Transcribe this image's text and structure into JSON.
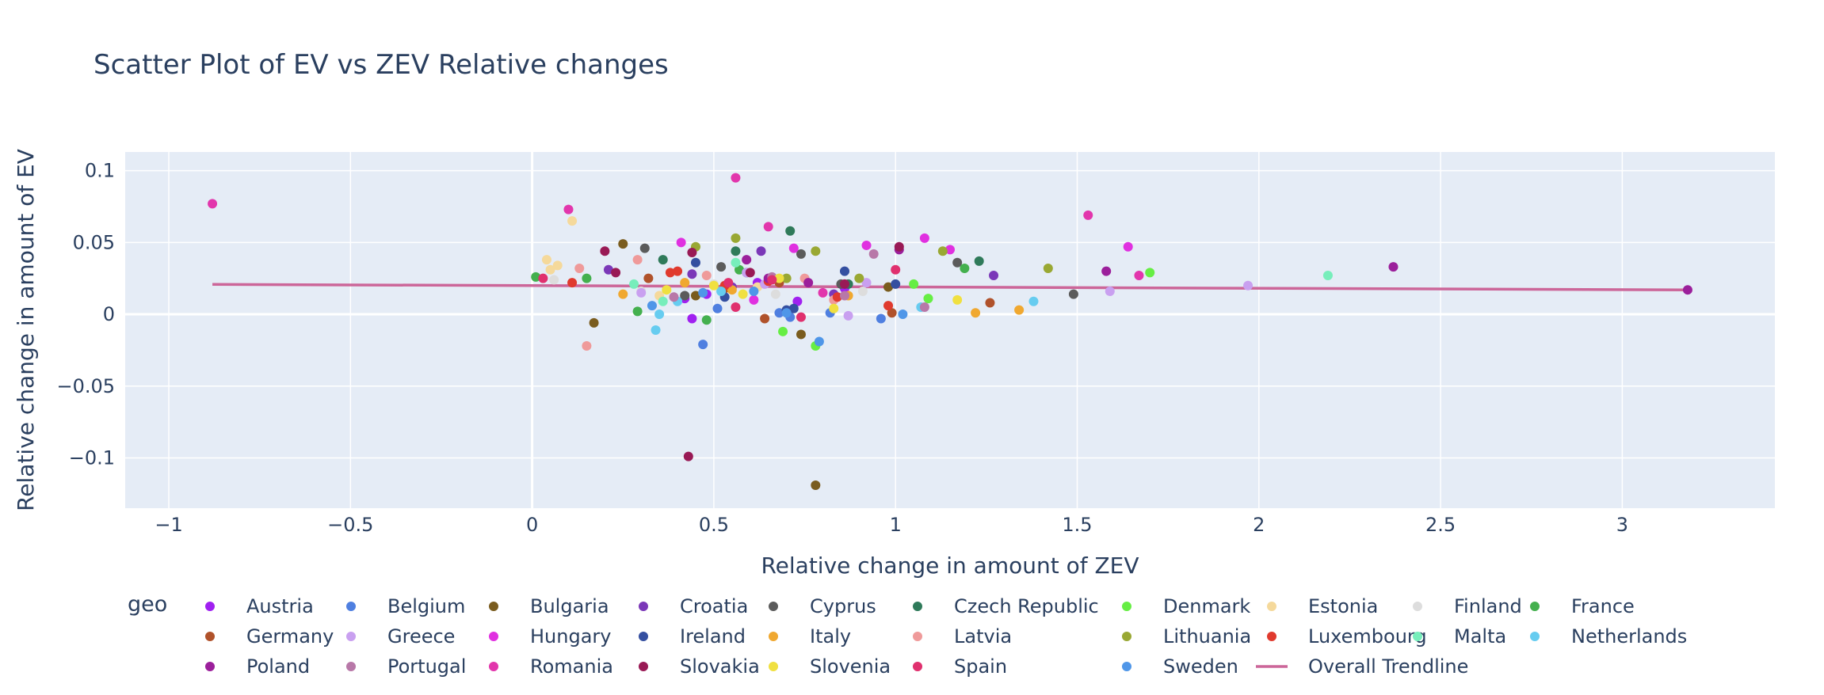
{
  "chart_data": {
    "type": "scatter",
    "title": "Scatter Plot of EV vs ZEV Relative changes",
    "xlabel": "Relative change in amount of ZEV",
    "ylabel": "Relative change in amount of EV",
    "xlim": [
      -1.12,
      3.42
    ],
    "ylim": [
      -0.135,
      0.113
    ],
    "x_ticks": [
      -1,
      -0.5,
      0,
      0.5,
      1,
      1.5,
      2,
      2.5,
      3
    ],
    "x_tick_labels": [
      "−1",
      "−0.5",
      "0",
      "0.5",
      "1",
      "1.5",
      "2",
      "2.5",
      "3"
    ],
    "y_ticks": [
      -0.1,
      -0.05,
      0,
      0.05,
      0.1
    ],
    "y_tick_labels": [
      "−0.1",
      "−0.05",
      "0",
      "0.05",
      "0.1"
    ],
    "grid": true,
    "legend_title": "geo",
    "legend_position": "bottom",
    "trendline": {
      "name": "Overall Trendline",
      "color": "#cc6699",
      "x": [
        -0.88,
        3.18
      ],
      "y": [
        0.0208,
        0.017
      ]
    },
    "series": [
      {
        "name": "Austria",
        "color": "#a020f0",
        "x": [
          0.42,
          0.44,
          0.48,
          0.62,
          0.73,
          0.86
        ],
        "y": [
          0.011,
          -0.003,
          0.014,
          0.022,
          0.009,
          0.018
        ]
      },
      {
        "name": "Belgium",
        "color": "#4f7fe0",
        "x": [
          0.47,
          0.51,
          0.68,
          0.71,
          0.82,
          0.96
        ],
        "y": [
          -0.021,
          0.004,
          0.001,
          -0.002,
          0.001,
          -0.003
        ]
      },
      {
        "name": "Bulgaria",
        "color": "#7a5c1e",
        "x": [
          0.17,
          0.25,
          0.45,
          0.74,
          0.78,
          0.98
        ],
        "y": [
          -0.006,
          0.049,
          0.013,
          -0.014,
          -0.119,
          0.019
        ]
      },
      {
        "name": "Croatia",
        "color": "#7b38b8",
        "x": [
          0.21,
          0.44,
          0.55,
          0.63,
          0.83,
          1.27
        ],
        "y": [
          0.031,
          0.028,
          0.019,
          0.044,
          0.014,
          0.027
        ]
      },
      {
        "name": "Cyprus",
        "color": "#5b5b5b",
        "x": [
          0.31,
          0.42,
          0.52,
          0.74,
          0.85,
          1.17,
          1.49
        ],
        "y": [
          0.046,
          0.013,
          0.033,
          0.042,
          0.021,
          0.036,
          0.014
        ]
      },
      {
        "name": "Czech Republic",
        "color": "#2f7a5a",
        "x": [
          0.36,
          0.56,
          0.59,
          0.71,
          0.87,
          1.23
        ],
        "y": [
          0.038,
          0.044,
          0.029,
          0.058,
          0.021,
          0.037
        ]
      },
      {
        "name": "Denmark",
        "color": "#66ee44",
        "x": [
          0.69,
          0.78,
          1.05,
          1.09,
          1.7
        ],
        "y": [
          -0.012,
          -0.022,
          0.021,
          0.011,
          0.029
        ]
      },
      {
        "name": "Estonia",
        "color": "#f5d99b",
        "x": [
          0.04,
          0.05,
          0.07,
          0.11,
          0.35,
          0.62
        ],
        "y": [
          0.038,
          0.031,
          0.034,
          0.065,
          0.013,
          0.019
        ]
      },
      {
        "name": "Finland",
        "color": "#dddddd",
        "x": [
          0.06,
          0.3,
          0.5,
          0.67,
          0.91
        ],
        "y": [
          0.024,
          0.016,
          0.021,
          0.014,
          0.016
        ]
      },
      {
        "name": "France",
        "color": "#44b04e",
        "x": [
          0.01,
          0.15,
          0.29,
          0.48,
          0.57,
          1.19
        ],
        "y": [
          0.026,
          0.025,
          0.002,
          -0.004,
          0.031,
          0.032
        ]
      },
      {
        "name": "Germany",
        "color": "#b0522b",
        "x": [
          0.32,
          0.53,
          0.64,
          0.68,
          0.99,
          1.26
        ],
        "y": [
          0.025,
          0.018,
          -0.003,
          0.022,
          0.001,
          0.008
        ]
      },
      {
        "name": "Greece",
        "color": "#c9a0f0",
        "x": [
          0.3,
          0.59,
          0.64,
          0.87,
          0.92,
          1.59,
          1.97
        ],
        "y": [
          0.015,
          0.029,
          0.021,
          -0.001,
          0.022,
          0.016,
          0.02
        ]
      },
      {
        "name": "Hungary",
        "color": "#e030e0",
        "x": [
          0.41,
          0.61,
          0.72,
          0.92,
          1.08,
          1.15,
          1.64
        ],
        "y": [
          0.05,
          0.01,
          0.046,
          0.048,
          0.053,
          0.045,
          0.047
        ]
      },
      {
        "name": "Ireland",
        "color": "#344fa0",
        "x": [
          0.45,
          0.53,
          0.7,
          0.72,
          0.86,
          1.0
        ],
        "y": [
          0.036,
          0.012,
          0.003,
          0.004,
          0.03,
          0.021
        ]
      },
      {
        "name": "Italy",
        "color": "#f0a830",
        "x": [
          0.25,
          0.42,
          0.55,
          0.87,
          1.22,
          1.34
        ],
        "y": [
          0.014,
          0.022,
          0.017,
          0.013,
          0.001,
          0.003
        ]
      },
      {
        "name": "Latvia",
        "color": "#ef9a9a",
        "x": [
          0.13,
          0.15,
          0.29,
          0.48,
          0.75,
          0.83
        ],
        "y": [
          0.032,
          -0.022,
          0.038,
          0.027,
          0.025,
          0.01
        ]
      },
      {
        "name": "Lithuania",
        "color": "#99a833",
        "x": [
          0.45,
          0.56,
          0.7,
          0.78,
          0.9,
          1.13,
          1.42
        ],
        "y": [
          0.047,
          0.053,
          0.025,
          0.044,
          0.025,
          0.044,
          0.032
        ]
      },
      {
        "name": "Luxembourg",
        "color": "#e03a2e",
        "x": [
          0.11,
          0.38,
          0.4,
          0.53,
          0.65,
          0.84,
          0.98
        ],
        "y": [
          0.022,
          0.029,
          0.03,
          0.02,
          0.023,
          0.012,
          0.006
        ]
      },
      {
        "name": "Malta",
        "color": "#77eebb",
        "x": [
          0.28,
          0.36,
          0.56,
          2.19
        ],
        "y": [
          0.021,
          0.009,
          0.036,
          0.027
        ]
      },
      {
        "name": "Netherlands",
        "color": "#66ccf0",
        "x": [
          0.34,
          0.35,
          0.4,
          0.52,
          1.07,
          1.38
        ],
        "y": [
          -0.011,
          0.0,
          0.009,
          0.016,
          0.005,
          0.009
        ]
      },
      {
        "name": "Poland",
        "color": "#9b1f9b",
        "x": [
          0.59,
          0.65,
          0.76,
          1.01,
          1.58,
          2.37,
          3.18
        ],
        "y": [
          0.038,
          0.025,
          0.022,
          0.045,
          0.03,
          0.033,
          0.017
        ]
      },
      {
        "name": "Portugal",
        "color": "#b878a8",
        "x": [
          0.39,
          0.66,
          0.86,
          0.94,
          1.08
        ],
        "y": [
          0.012,
          0.026,
          0.013,
          0.042,
          0.005
        ]
      },
      {
        "name": "Romania",
        "color": "#e236ac",
        "x": [
          -0.88,
          0.1,
          0.56,
          0.65,
          0.8,
          1.53,
          1.67
        ],
        "y": [
          0.077,
          0.073,
          0.095,
          0.061,
          0.015,
          0.069,
          0.027
        ]
      },
      {
        "name": "Slovakia",
        "color": "#991a55",
        "x": [
          0.2,
          0.23,
          0.43,
          0.44,
          0.6,
          0.86,
          1.01
        ],
        "y": [
          0.044,
          0.029,
          -0.099,
          0.043,
          0.029,
          0.021,
          0.047
        ]
      },
      {
        "name": "Slovenia",
        "color": "#f0e040",
        "x": [
          0.37,
          0.5,
          0.58,
          0.68,
          0.83,
          1.17
        ],
        "y": [
          0.017,
          0.02,
          0.014,
          0.025,
          0.004,
          0.01
        ]
      },
      {
        "name": "Spain",
        "color": "#e0306e",
        "x": [
          0.03,
          0.54,
          0.56,
          0.66,
          0.74,
          1.0
        ],
        "y": [
          0.025,
          0.022,
          0.005,
          0.024,
          -0.002,
          0.031
        ]
      },
      {
        "name": "Sweden",
        "color": "#4f96e8",
        "x": [
          0.33,
          0.47,
          0.61,
          0.7,
          0.79,
          1.02
        ],
        "y": [
          0.006,
          0.015,
          0.016,
          0.001,
          -0.019,
          0.0
        ]
      }
    ]
  }
}
